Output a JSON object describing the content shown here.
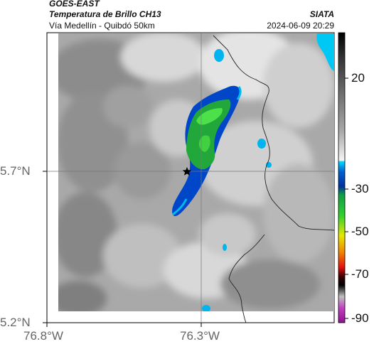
{
  "header": {
    "satellite": "GOES-EAST",
    "product": "Temperatura de Brillo CH13",
    "route": "Vía Medellín - Quibdó 50km",
    "agency": "SIATA",
    "datetime": "2024-06-09 20:29"
  },
  "map": {
    "lat_labels": [
      "5.7°N",
      "5.2°N"
    ],
    "lon_labels": [
      "76.8°W",
      "76.3°W"
    ],
    "marker_icon": "star-icon"
  },
  "colorbar": {
    "ticks": [
      "20",
      "-30",
      "-50",
      "-70",
      "-90"
    ],
    "colors": {
      "black": "#000000",
      "gray_warm": "#c8c8c8",
      "cyan": "#00c8ff",
      "blue": "#0040c0",
      "green": "#30c030",
      "yellow": "#e8e800",
      "red": "#e01010",
      "magenta": "#c020c0"
    }
  }
}
